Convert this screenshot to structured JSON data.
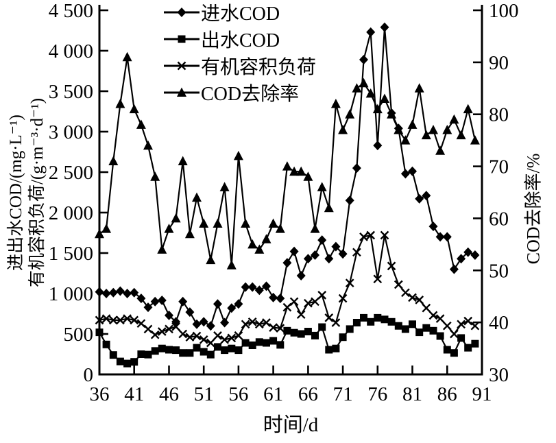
{
  "figure": {
    "background": "#ffffff",
    "ink": "#000000"
  },
  "chart_data": {
    "type": "line",
    "title": "",
    "xlabel": "时间/d",
    "ylabel_left_line1": "进出水COD/(mg·L⁻¹)",
    "ylabel_left_line2": "有机容积负荷/(g·m⁻³·d⁻¹)",
    "ylabel_right": "COD去除率/%",
    "grid": false,
    "legend_position": "top-inside",
    "x_range": [
      36,
      91
    ],
    "x_ticks": [
      36,
      41,
      46,
      51,
      56,
      61,
      66,
      71,
      76,
      81,
      86,
      91
    ],
    "y_left_range": [
      0,
      4500
    ],
    "y_left_tick_values": [
      0,
      500,
      1000,
      1500,
      2000,
      2500,
      3000,
      3500,
      4000,
      4500
    ],
    "y_left_tick_labels": [
      "0",
      "500",
      "1 000",
      "1 500",
      "2 000",
      "2 500",
      "3 000",
      "3 500",
      "4 000",
      "4 500"
    ],
    "y_right_range": [
      30,
      100
    ],
    "y_right_tick_values": [
      30,
      40,
      50,
      60,
      70,
      80,
      90,
      100
    ],
    "x": [
      36,
      37,
      38,
      39,
      40,
      41,
      42,
      43,
      44,
      45,
      46,
      47,
      48,
      49,
      50,
      51,
      52,
      53,
      54,
      55,
      56,
      57,
      58,
      59,
      60,
      61,
      62,
      63,
      64,
      65,
      66,
      67,
      68,
      69,
      70,
      71,
      72,
      73,
      74,
      75,
      76,
      77,
      78,
      79,
      80,
      81,
      82,
      83,
      84,
      85,
      86,
      87,
      88,
      89,
      90
    ],
    "series": [
      {
        "name": "进水COD",
        "key": "influent-cod",
        "marker": "diamond",
        "axis": "left",
        "values": [
          1020,
          1000,
          1010,
          1030,
          1000,
          1010,
          940,
          830,
          900,
          915,
          730,
          650,
          900,
          770,
          620,
          650,
          600,
          870,
          640,
          820,
          870,
          1080,
          1080,
          1040,
          1090,
          950,
          940,
          1380,
          1520,
          1220,
          1430,
          1475,
          1660,
          1430,
          1580,
          1490,
          2150,
          2550,
          3890,
          4230,
          2830,
          4290,
          3230,
          3040,
          2480,
          2510,
          2170,
          2210,
          1830,
          1700,
          1700,
          1300,
          1430,
          1510,
          1475
        ]
      },
      {
        "name": "出水COD",
        "key": "effluent-cod",
        "marker": "square",
        "axis": "left",
        "values": [
          520,
          370,
          240,
          160,
          135,
          155,
          250,
          245,
          290,
          320,
          305,
          300,
          265,
          265,
          330,
          280,
          245,
          340,
          300,
          320,
          300,
          390,
          360,
          400,
          390,
          415,
          365,
          540,
          515,
          500,
          530,
          480,
          585,
          305,
          320,
          460,
          560,
          640,
          700,
          650,
          700,
          680,
          650,
          600,
          560,
          620,
          520,
          575,
          540,
          475,
          305,
          265,
          450,
          330,
          380
        ]
      },
      {
        "name": "有机容积负荷",
        "key": "organic-volumetric-load",
        "marker": "x",
        "axis": "left",
        "values": [
          670,
          690,
          670,
          670,
          690,
          670,
          630,
          560,
          490,
          530,
          560,
          590,
          500,
          460,
          475,
          430,
          390,
          480,
          430,
          450,
          480,
          620,
          650,
          620,
          640,
          580,
          570,
          830,
          900,
          740,
          880,
          900,
          980,
          700,
          640,
          940,
          1130,
          1510,
          1700,
          1720,
          1180,
          1720,
          1340,
          1110,
          1010,
          950,
          920,
          820,
          730,
          690,
          600,
          500,
          620,
          660,
          600
        ]
      },
      {
        "name": "COD去除率",
        "key": "cod-removal-rate",
        "marker": "triangle",
        "axis": "right",
        "values": [
          57,
          58,
          71,
          82,
          91,
          81,
          78,
          74,
          68,
          54,
          58,
          60,
          71,
          57,
          64,
          59,
          52,
          59,
          66,
          51,
          72,
          59,
          55,
          54,
          56,
          59,
          58,
          70,
          69,
          69,
          68,
          58,
          66,
          62,
          82,
          77,
          80,
          85,
          86,
          84,
          81,
          83,
          80,
          77,
          75,
          78,
          85,
          76,
          77,
          73,
          77,
          79,
          76,
          81,
          75
        ]
      }
    ]
  }
}
